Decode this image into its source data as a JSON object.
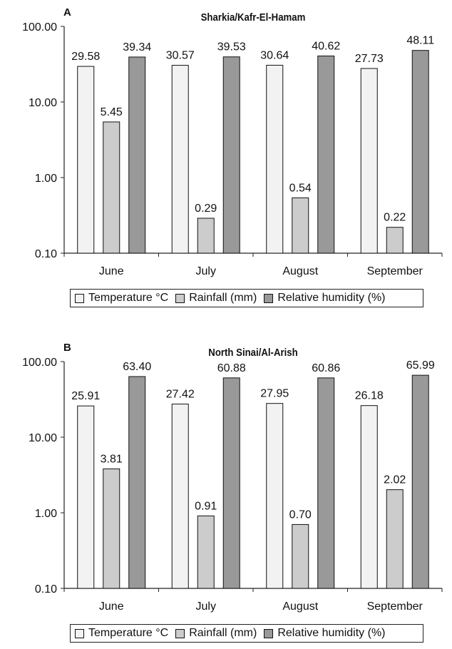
{
  "chart_data": [
    {
      "type": "bar",
      "panel_label": "A",
      "title": "Sharkia/Kafr-El-Hamam",
      "categories": [
        "June",
        "July",
        "August",
        "September"
      ],
      "series": [
        {
          "name": "Temperature °C",
          "values": [
            29.58,
            30.57,
            30.64,
            27.73
          ],
          "labels": [
            "29.58",
            "30.57",
            "30.64",
            "27.73"
          ],
          "color": "#f2f2f2"
        },
        {
          "name": "Rainfall (mm)",
          "values": [
            5.45,
            0.29,
            0.54,
            0.22
          ],
          "labels": [
            "5.45",
            "0.29",
            "0.54",
            "0.22"
          ],
          "color": "#cccccc"
        },
        {
          "name": "Relative humidity (%)",
          "values": [
            39.34,
            39.53,
            40.62,
            48.11
          ],
          "labels": [
            "39.34",
            "39.53",
            "40.62",
            "48.11"
          ],
          "color": "#999999"
        }
      ],
      "y_scale": "log",
      "ylim": [
        0.1,
        100
      ],
      "yticks": [
        "100.00",
        "10.00",
        "1.00",
        "0.10"
      ],
      "legend_position": "bottom"
    },
    {
      "type": "bar",
      "panel_label": "B",
      "title": "North Sinai/Al-Arish",
      "categories": [
        "June",
        "July",
        "August",
        "September"
      ],
      "series": [
        {
          "name": "Temperature °C",
          "values": [
            25.91,
            27.42,
            27.95,
            26.18
          ],
          "labels": [
            "25.91",
            "27.42",
            "27.95",
            "26.18"
          ],
          "color": "#f2f2f2"
        },
        {
          "name": "Rainfall (mm)",
          "values": [
            3.81,
            0.91,
            0.7,
            2.02
          ],
          "labels": [
            "3.81",
            "0.91",
            "0.70",
            "2.02"
          ],
          "color": "#cccccc"
        },
        {
          "name": "Relative humidity (%)",
          "values": [
            63.4,
            60.88,
            60.86,
            65.99
          ],
          "labels": [
            "63.40",
            "60.88",
            "60.86",
            "65.99"
          ],
          "color": "#999999"
        }
      ],
      "y_scale": "log",
      "ylim": [
        0.1,
        100
      ],
      "yticks": [
        "100.00",
        "10.00",
        "1.00",
        "0.10"
      ],
      "legend_position": "bottom"
    }
  ]
}
